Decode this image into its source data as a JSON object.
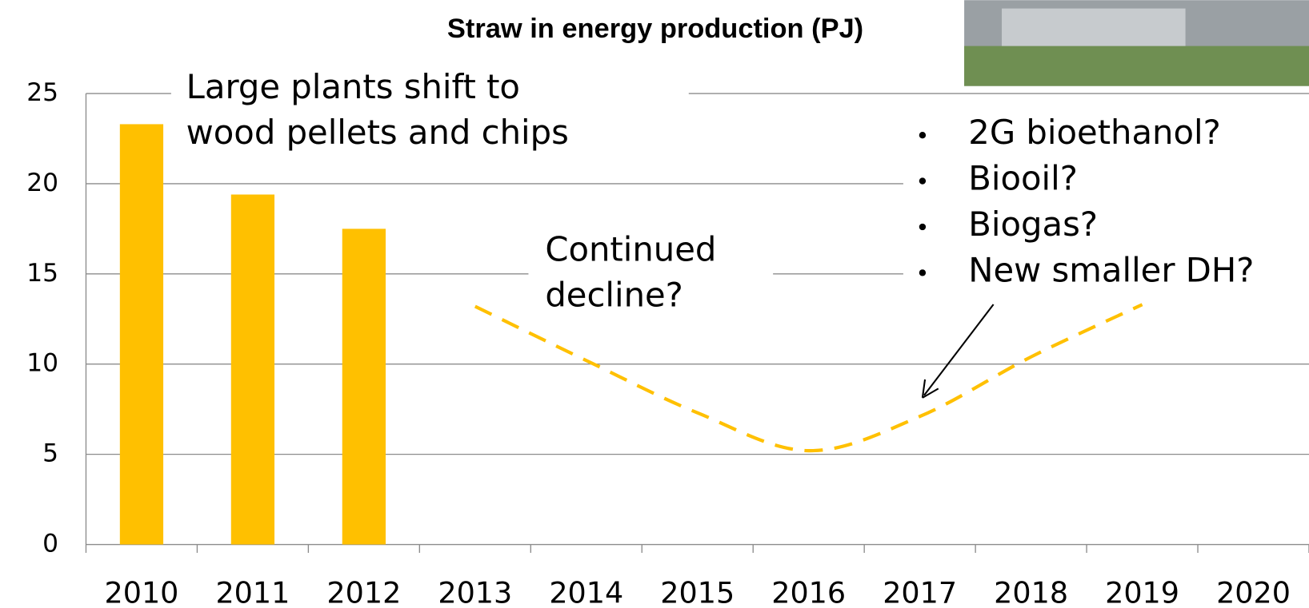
{
  "chart_data": {
    "type": "bar",
    "title": "Straw in energy production (PJ)",
    "categories": [
      "2010",
      "2011",
      "2012",
      "2013",
      "2014",
      "2015",
      "2016",
      "2017",
      "2018",
      "2019",
      "2020"
    ],
    "series": [
      {
        "color": "#ffc000",
        "values": [
          23.3,
          19.4,
          17.5,
          null,
          null,
          null,
          null,
          null,
          null,
          null,
          null
        ]
      },
      {
        "color": "#ffc000",
        "style": "dashed",
        "values": [
          null,
          null,
          null,
          13.2,
          10.2,
          7.3,
          5.2,
          7.1,
          10.4,
          13.3,
          null
        ]
      }
    ],
    "ylim": [
      0,
      25
    ],
    "yticks": [
      0,
      5,
      10,
      15,
      20,
      25
    ],
    "grid": true,
    "annotations": [
      {
        "lines": [
          "Large plants shift to",
          "wood pellets and chips"
        ]
      },
      {
        "lines": [
          "Continued",
          "decline?"
        ]
      },
      {
        "bullets": [
          "2G bioethanol?",
          "Biooil?",
          "Biogas?",
          "New smaller DH?"
        ]
      }
    ]
  }
}
